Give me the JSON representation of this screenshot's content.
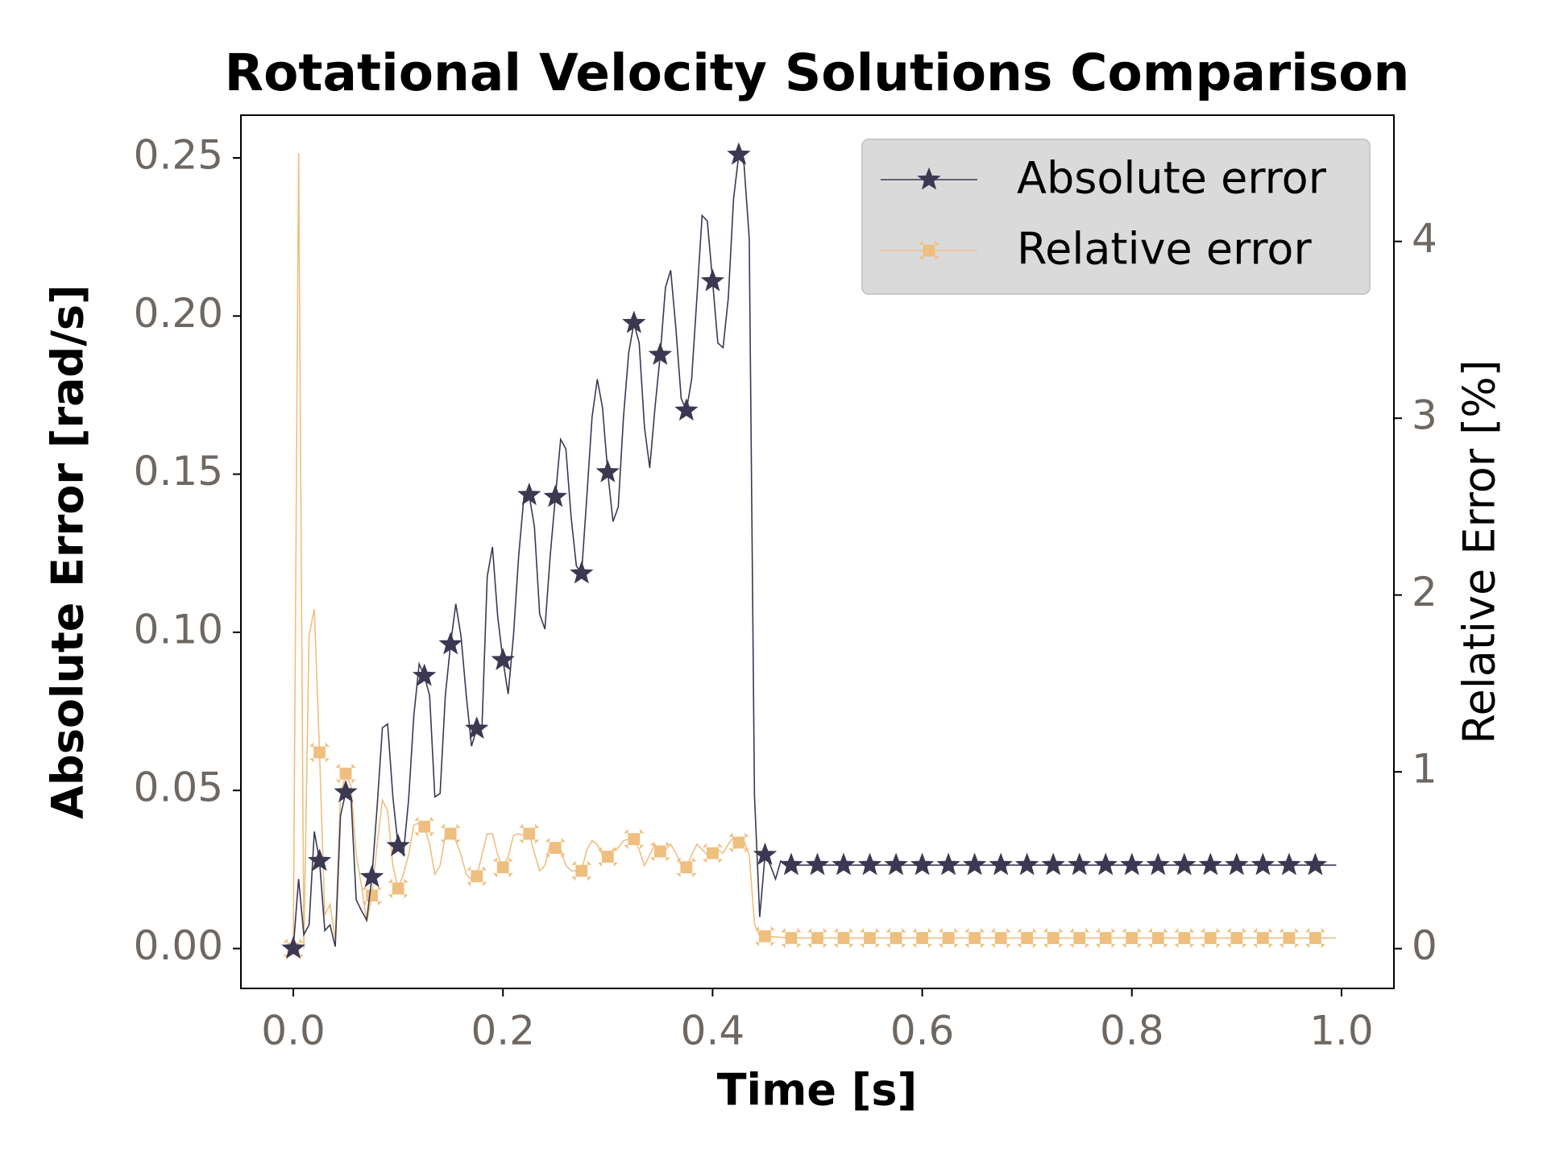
{
  "chart_data": {
    "type": "line",
    "title": "Rotational Velocity Solutions Comparison",
    "x_label": "Time [s]",
    "y_label": "Absolute Error [rad/s]",
    "y2_label": "Relative Error [%]",
    "xlim": [
      -0.05,
      1.05
    ],
    "ylim": [
      -0.0126,
      0.2635
    ],
    "y2lim": [
      -0.225,
      4.714
    ],
    "xticks": [
      {
        "value": 0,
        "label": "0.0"
      },
      0.2,
      0.4,
      0.6,
      0.8,
      {
        "value": 1,
        "label": "1.0"
      }
    ],
    "yticks": [
      {
        "value": 0,
        "label": "0.00"
      },
      0.05,
      {
        "value": 0.1,
        "label": "0.10"
      },
      0.15,
      {
        "value": 0.2,
        "label": "0.20"
      },
      0.25
    ],
    "y2ticks": [
      0,
      1,
      2,
      3,
      4
    ],
    "legend": "upper right",
    "series": [
      {
        "name": "Absolute error",
        "color": "#3b3852",
        "marker": "star",
        "axis": "y",
        "x": [
          0,
          0.005,
          0.01,
          0.015,
          0.02,
          0.025,
          0.03,
          0.035,
          0.04,
          0.045,
          0.05,
          0.055,
          0.06,
          0.065,
          0.07,
          0.075,
          0.08,
          0.085,
          0.09,
          0.095,
          0.1,
          0.105,
          0.11,
          0.115,
          0.12,
          0.125,
          0.13,
          0.135,
          0.14,
          0.145,
          0.15,
          0.155,
          0.16,
          0.165,
          0.17,
          0.175,
          0.18,
          0.185,
          0.19,
          0.195,
          0.2,
          0.205,
          0.21,
          0.215,
          0.22,
          0.225,
          0.23,
          0.235,
          0.24,
          0.245,
          0.25,
          0.255,
          0.26,
          0.265,
          0.27,
          0.275,
          0.28,
          0.285,
          0.29,
          0.295,
          0.3,
          0.305,
          0.31,
          0.315,
          0.32,
          0.325,
          0.33,
          0.335,
          0.34,
          0.345,
          0.35,
          0.355,
          0.36,
          0.365,
          0.37,
          0.375,
          0.38,
          0.385,
          0.39,
          0.395,
          0.4,
          0.405,
          0.41,
          0.415,
          0.42,
          0.425,
          0.43,
          0.435,
          0.44,
          0.445,
          0.45,
          0.455,
          0.46,
          0.465,
          0.47,
          0.475,
          0.5,
          0.525,
          0.55,
          0.575,
          0.6,
          0.625,
          0.65,
          0.675,
          0.7,
          0.725,
          0.75,
          0.775,
          0.8,
          0.825,
          0.85,
          0.875,
          0.9,
          0.925,
          0.95,
          0.975,
          0.995
        ],
        "values": [
          0,
          0.022,
          0.0044,
          0.0075,
          0.037,
          0.0277,
          0.0057,
          0.0075,
          0.0006,
          0.042,
          0.0494,
          0.048,
          0.0154,
          0.012,
          0.009,
          0.0226,
          0.045,
          0.0698,
          0.071,
          0.048,
          0.0324,
          0.0296,
          0.047,
          0.0736,
          0.09,
          0.0862,
          0.08,
          0.048,
          0.049,
          0.08,
          0.0962,
          0.109,
          0.0987,
          0.08,
          0.064,
          0.0695,
          0.07,
          0.1176,
          0.127,
          0.105,
          0.0912,
          0.0805,
          0.0987,
          0.124,
          0.1428,
          0.1434,
          0.1333,
          0.1057,
          0.101,
          0.124,
          0.1428,
          0.161,
          0.158,
          0.1365,
          0.121,
          0.1186,
          0.1428,
          0.168,
          0.18,
          0.171,
          0.1506,
          0.135,
          0.1396,
          0.168,
          0.1884,
          0.1978,
          0.1915,
          0.165,
          0.152,
          0.171,
          0.1877,
          0.209,
          0.2145,
          0.196,
          0.174,
          0.1701,
          0.18,
          0.2057,
          0.2318,
          0.23,
          0.211,
          0.1915,
          0.19,
          0.2057,
          0.237,
          0.251,
          0.248,
          0.2245,
          0.0484,
          0.01,
          0.0296,
          0.0264,
          0.022,
          0.0277,
          0.0264,
          0.0264,
          0.0264,
          0.0264,
          0.0264,
          0.0264,
          0.0264,
          0.0264,
          0.0264,
          0.0264,
          0.0264,
          0.0264,
          0.0264,
          0.0264,
          0.0264,
          0.0264,
          0.0264,
          0.0264,
          0.0264,
          0.0264,
          0.0264,
          0.0264,
          0.0264
        ]
      },
      {
        "name": "Relative error",
        "color": "#efbf7f",
        "marker": "x",
        "axis": "y2",
        "x": [
          0,
          0.005,
          0.01,
          0.015,
          0.02,
          0.025,
          0.03,
          0.035,
          0.04,
          0.045,
          0.05,
          0.055,
          0.06,
          0.065,
          0.07,
          0.075,
          0.08,
          0.085,
          0.09,
          0.095,
          0.1,
          0.105,
          0.11,
          0.115,
          0.12,
          0.125,
          0.13,
          0.135,
          0.14,
          0.145,
          0.15,
          0.155,
          0.16,
          0.165,
          0.17,
          0.175,
          0.18,
          0.185,
          0.19,
          0.195,
          0.2,
          0.205,
          0.21,
          0.215,
          0.22,
          0.225,
          0.23,
          0.235,
          0.24,
          0.245,
          0.25,
          0.255,
          0.26,
          0.265,
          0.27,
          0.275,
          0.28,
          0.285,
          0.29,
          0.295,
          0.3,
          0.305,
          0.31,
          0.315,
          0.32,
          0.325,
          0.33,
          0.335,
          0.34,
          0.345,
          0.35,
          0.355,
          0.36,
          0.365,
          0.37,
          0.375,
          0.38,
          0.385,
          0.39,
          0.395,
          0.4,
          0.405,
          0.41,
          0.415,
          0.42,
          0.425,
          0.43,
          0.435,
          0.44,
          0.445,
          0.45,
          0.475,
          0.5,
          0.525,
          0.55,
          0.575,
          0.6,
          0.625,
          0.65,
          0.675,
          0.7,
          0.725,
          0.75,
          0.775,
          0.8,
          0.825,
          0.85,
          0.875,
          0.9,
          0.925,
          0.95,
          0.975,
          0.995
        ],
        "values": [
          0,
          4.5,
          0,
          1.77,
          1.92,
          1.11,
          0.19,
          0.25,
          0.05,
          0.87,
          0.99,
          0.92,
          0.53,
          0.36,
          0.15,
          0.3,
          0.59,
          0.84,
          0.78,
          0.47,
          0.34,
          0.42,
          0.53,
          0.7,
          0.71,
          0.69,
          0.59,
          0.42,
          0.47,
          0.64,
          0.65,
          0.61,
          0.53,
          0.42,
          0.39,
          0.41,
          0.53,
          0.65,
          0.65,
          0.53,
          0.46,
          0.52,
          0.64,
          0.65,
          0.64,
          0.65,
          0.54,
          0.44,
          0.47,
          0.59,
          0.57,
          0.56,
          0.47,
          0.44,
          0.44,
          0.44,
          0.56,
          0.61,
          0.59,
          0.53,
          0.52,
          0.56,
          0.57,
          0.61,
          0.62,
          0.62,
          0.56,
          0.47,
          0.53,
          0.59,
          0.55,
          0.56,
          0.59,
          0.54,
          0.47,
          0.46,
          0.53,
          0.59,
          0.56,
          0.53,
          0.54,
          0.56,
          0.54,
          0.59,
          0.63,
          0.6,
          0.61,
          0.53,
          0.14,
          0.07,
          0.07,
          0.06,
          0.06,
          0.06,
          0.06,
          0.06,
          0.06,
          0.06,
          0.06,
          0.06,
          0.06,
          0.06,
          0.06,
          0.06,
          0.06,
          0.06,
          0.06,
          0.06,
          0.06,
          0.06,
          0.06,
          0.06,
          0.06
        ]
      }
    ]
  }
}
